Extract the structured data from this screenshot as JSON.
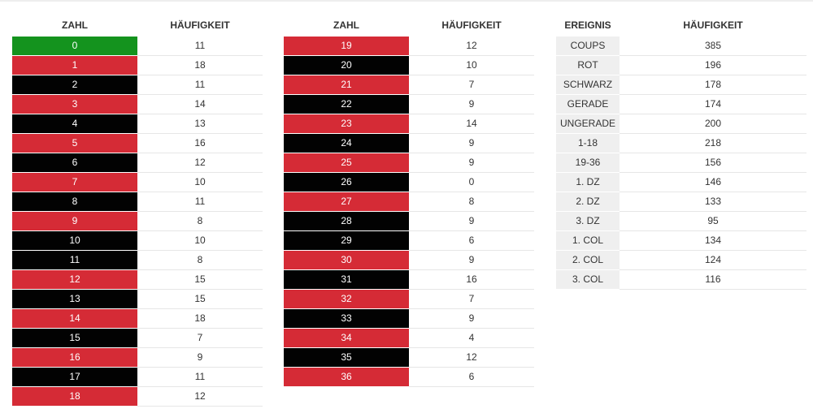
{
  "colors": {
    "red": "#d52b36",
    "black": "#020202",
    "green": "#14931e"
  },
  "table1": {
    "headers": [
      "ZAHL",
      "HÄUFIGKEIT"
    ],
    "rows": [
      {
        "number": "0",
        "count": "11",
        "color": "green"
      },
      {
        "number": "1",
        "count": "18",
        "color": "red"
      },
      {
        "number": "2",
        "count": "11",
        "color": "black"
      },
      {
        "number": "3",
        "count": "14",
        "color": "red"
      },
      {
        "number": "4",
        "count": "13",
        "color": "black"
      },
      {
        "number": "5",
        "count": "16",
        "color": "red"
      },
      {
        "number": "6",
        "count": "12",
        "color": "black"
      },
      {
        "number": "7",
        "count": "10",
        "color": "red"
      },
      {
        "number": "8",
        "count": "11",
        "color": "black"
      },
      {
        "number": "9",
        "count": "8",
        "color": "red"
      },
      {
        "number": "10",
        "count": "10",
        "color": "black"
      },
      {
        "number": "11",
        "count": "8",
        "color": "black"
      },
      {
        "number": "12",
        "count": "15",
        "color": "red"
      },
      {
        "number": "13",
        "count": "15",
        "color": "black"
      },
      {
        "number": "14",
        "count": "18",
        "color": "red"
      },
      {
        "number": "15",
        "count": "7",
        "color": "black"
      },
      {
        "number": "16",
        "count": "9",
        "color": "red"
      },
      {
        "number": "17",
        "count": "11",
        "color": "black"
      },
      {
        "number": "18",
        "count": "12",
        "color": "red"
      }
    ]
  },
  "table2": {
    "headers": [
      "ZAHL",
      "HÄUFIGKEIT"
    ],
    "rows": [
      {
        "number": "19",
        "count": "12",
        "color": "red"
      },
      {
        "number": "20",
        "count": "10",
        "color": "black"
      },
      {
        "number": "21",
        "count": "7",
        "color": "red"
      },
      {
        "number": "22",
        "count": "9",
        "color": "black"
      },
      {
        "number": "23",
        "count": "14",
        "color": "red"
      },
      {
        "number": "24",
        "count": "9",
        "color": "black"
      },
      {
        "number": "25",
        "count": "9",
        "color": "red"
      },
      {
        "number": "26",
        "count": "0",
        "color": "black"
      },
      {
        "number": "27",
        "count": "8",
        "color": "red"
      },
      {
        "number": "28",
        "count": "9",
        "color": "black"
      },
      {
        "number": "29",
        "count": "6",
        "color": "black"
      },
      {
        "number": "30",
        "count": "9",
        "color": "red"
      },
      {
        "number": "31",
        "count": "16",
        "color": "black"
      },
      {
        "number": "32",
        "count": "7",
        "color": "red"
      },
      {
        "number": "33",
        "count": "9",
        "color": "black"
      },
      {
        "number": "34",
        "count": "4",
        "color": "red"
      },
      {
        "number": "35",
        "count": "12",
        "color": "black"
      },
      {
        "number": "36",
        "count": "6",
        "color": "red"
      }
    ]
  },
  "table3": {
    "headers": [
      "EREIGNIS",
      "HÄUFIGKEIT"
    ],
    "rows": [
      {
        "event": "COUPS",
        "count": "385"
      },
      {
        "event": "ROT",
        "count": "196"
      },
      {
        "event": "SCHWARZ",
        "count": "178"
      },
      {
        "event": "GERADE",
        "count": "174"
      },
      {
        "event": "UNGERADE",
        "count": "200"
      },
      {
        "event": "1-18",
        "count": "218"
      },
      {
        "event": "19-36",
        "count": "156"
      },
      {
        "event": "1. DZ",
        "count": "146"
      },
      {
        "event": "2. DZ",
        "count": "133"
      },
      {
        "event": "3. DZ",
        "count": "95"
      },
      {
        "event": "1. COL",
        "count": "134"
      },
      {
        "event": "2. COL",
        "count": "124"
      },
      {
        "event": "3. COL",
        "count": "116"
      }
    ]
  }
}
